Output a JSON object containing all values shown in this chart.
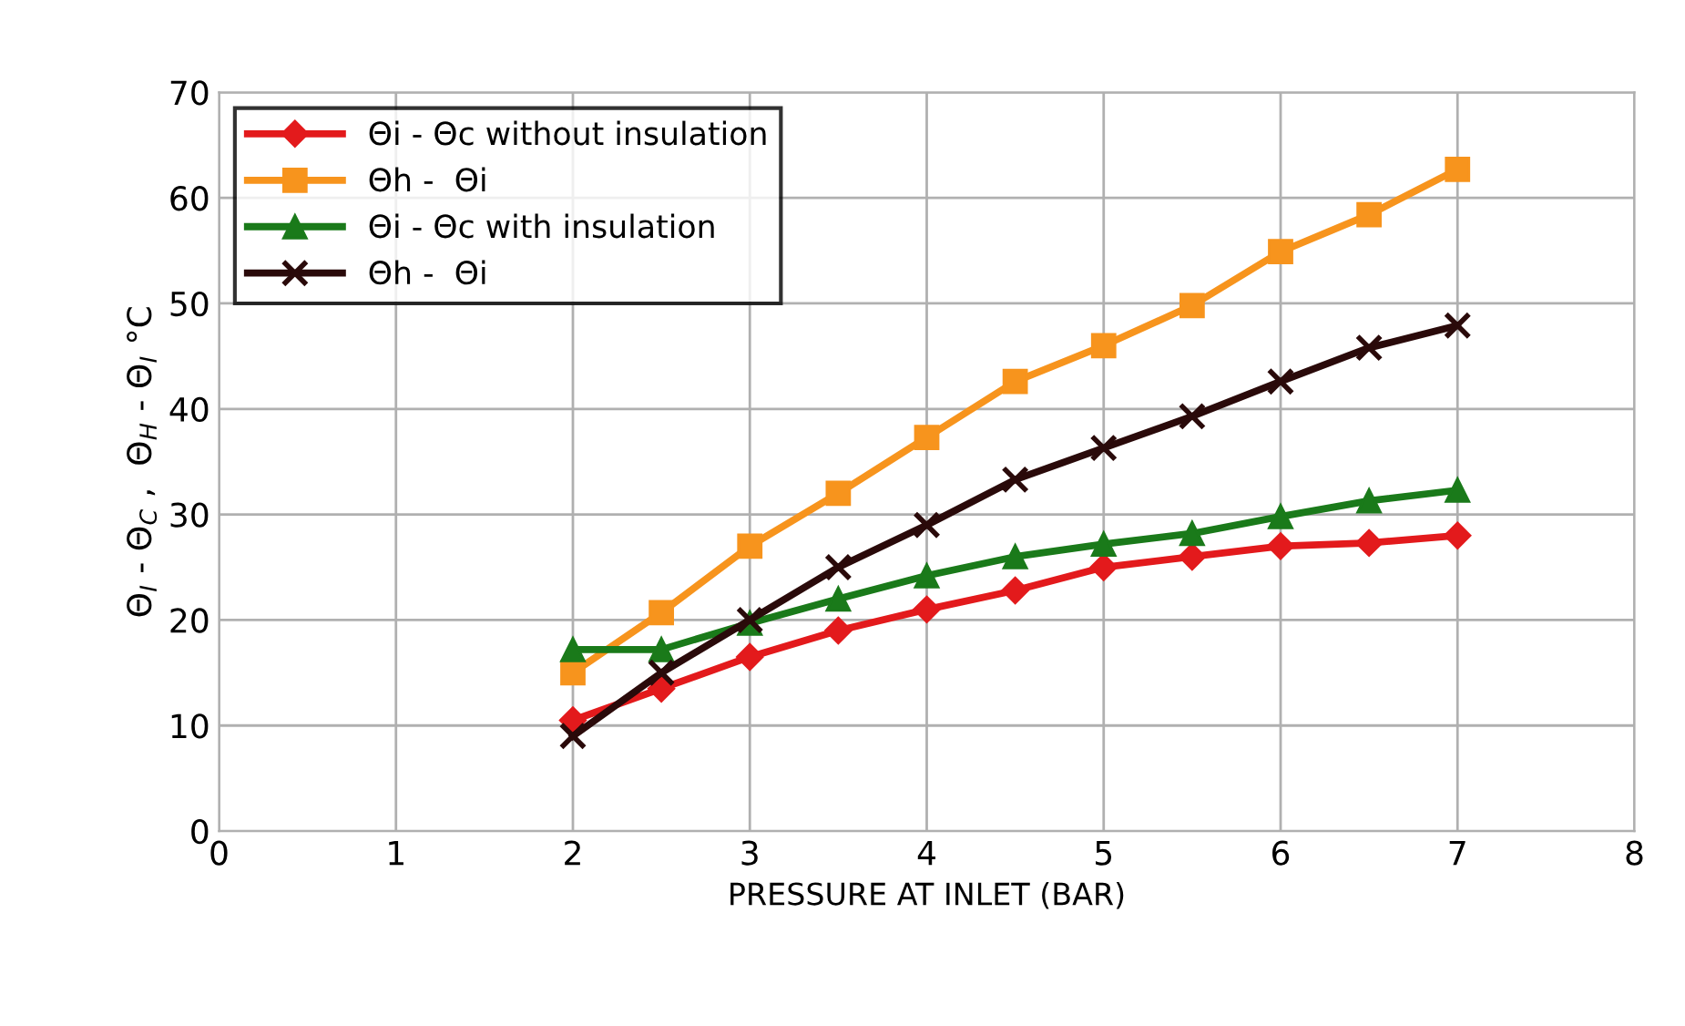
{
  "chart_data": {
    "type": "line",
    "xlabel": "PRESSURE AT INLET (BAR)",
    "ylabel": "Θ$_{I}$ - Θ$_{C}$ ,  Θ$_{H}$ - Θ$_{I}$ °C",
    "x": [
      2,
      2.5,
      3,
      3.5,
      4,
      4.5,
      5,
      5.5,
      6,
      6.5,
      7
    ],
    "series": [
      {
        "name": "Θi - Θc without insulation",
        "color": "#e31a1c",
        "marker": "diamond",
        "values": [
          10.5,
          13.5,
          16.5,
          19,
          21,
          22.8,
          25,
          26,
          27,
          27.3,
          28
        ]
      },
      {
        "name": "Θh -  Θi",
        "color": "#f7941d",
        "marker": "square",
        "values": [
          15,
          20.7,
          27,
          32,
          37.3,
          42.6,
          46,
          49.8,
          54.9,
          58.4,
          62.7
        ]
      },
      {
        "name": "Θi - Θc with insulation",
        "color": "#1a7a1a",
        "marker": "triangle",
        "values": [
          17.2,
          17.2,
          19.7,
          22,
          24.2,
          26,
          27.2,
          28.2,
          29.8,
          31.3,
          32.3
        ]
      },
      {
        "name": "Θh -  Θi",
        "color": "#2a0a0a",
        "marker": "cross",
        "values": [
          9,
          15,
          20,
          25,
          29,
          33.3,
          36.3,
          39.3,
          42.6,
          45.8,
          47.9
        ]
      }
    ],
    "xlim": [
      0,
      8
    ],
    "xticks": [
      0,
      1,
      2,
      3,
      4,
      5,
      6,
      7,
      8
    ],
    "ylim": [
      0,
      70
    ],
    "yticks": [
      0,
      10,
      20,
      30,
      40,
      50,
      60,
      70
    ],
    "grid": true,
    "legend": "top left"
  }
}
